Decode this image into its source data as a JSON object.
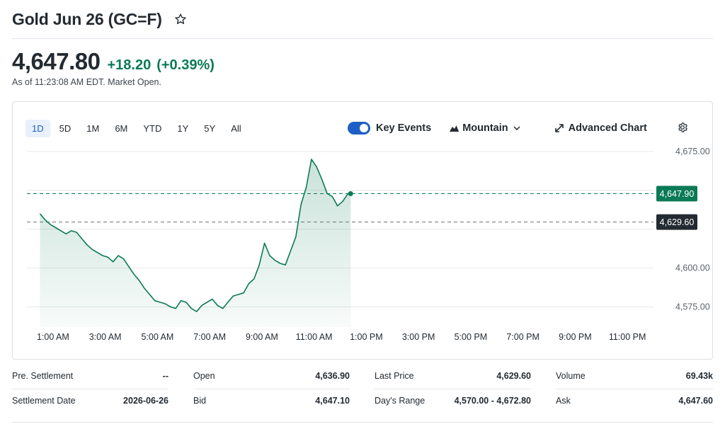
{
  "header": {
    "title": "Gold Jun 26 (GC=F)",
    "star_icon": "star-outline-icon"
  },
  "quote": {
    "price": "4,647.80",
    "change": "+18.20",
    "change_pct": "(+0.39%)",
    "as_of": "As of 11:23:08 AM EDT. Market Open.",
    "positive_color": "#0b7a56"
  },
  "ranges": [
    {
      "label": "1D",
      "active": true
    },
    {
      "label": "5D",
      "active": false
    },
    {
      "label": "1M",
      "active": false
    },
    {
      "label": "6M",
      "active": false
    },
    {
      "label": "YTD",
      "active": false
    },
    {
      "label": "1Y",
      "active": false
    },
    {
      "label": "5Y",
      "active": false
    },
    {
      "label": "All",
      "active": false
    }
  ],
  "toolbar": {
    "key_events_label": "Key Events",
    "key_events_on": true,
    "chart_type_label": "Mountain",
    "advanced_chart_label": "Advanced Chart",
    "settings_icon": "gear-icon"
  },
  "chart_data": {
    "type": "area",
    "x_ticks": [
      "1:00 AM",
      "3:00 AM",
      "5:00 AM",
      "7:00 AM",
      "9:00 AM",
      "11:00 AM",
      "1:00 PM",
      "3:00 PM",
      "5:00 PM",
      "7:00 PM",
      "9:00 PM",
      "11:00 PM"
    ],
    "y_ticks": [
      "4,675.00",
      "4,600.00",
      "4,575.00"
    ],
    "ylim": [
      4562,
      4675
    ],
    "last_price_label": "4,647.90",
    "prev_close_label": "4,629.60",
    "last_price_value": 4647.9,
    "prev_close_value": 4629.6,
    "line_color": "#0b7a56",
    "series": [
      {
        "x_hours": [
          0.5,
          0.7,
          0.9,
          1.1,
          1.3,
          1.5,
          1.7,
          1.9,
          2.1,
          2.3,
          2.5,
          2.7,
          2.9,
          3.1,
          3.3,
          3.5,
          3.7,
          3.9,
          4.1,
          4.3,
          4.5,
          4.7,
          4.9,
          5.1,
          5.3,
          5.5,
          5.7,
          5.9,
          6.1,
          6.3,
          6.5,
          6.7,
          6.9,
          7.1,
          7.3,
          7.5,
          7.7,
          7.9,
          8.1,
          8.3,
          8.5,
          8.7,
          8.9,
          9.1,
          9.3,
          9.5,
          9.7,
          9.9,
          10.1,
          10.3,
          10.5,
          10.7,
          10.9,
          11.1,
          11.3,
          11.5,
          11.7,
          11.9,
          12.1,
          12.3,
          12.4
        ],
        "values": [
          4635,
          4631,
          4628,
          4626,
          4624,
          4622,
          4624,
          4623,
          4619,
          4615,
          4612,
          4610,
          4608,
          4607,
          4604,
          4608,
          4606,
          4601,
          4596,
          4592,
          4587,
          4583,
          4579,
          4578,
          4577,
          4575,
          4574,
          4579,
          4578,
          4574,
          4572,
          4576,
          4578,
          4580,
          4576,
          4574,
          4578,
          4582,
          4583,
          4584,
          4590,
          4593,
          4602,
          4616,
          4608,
          4605,
          4603,
          4602,
          4611,
          4620,
          4641,
          4652,
          4670,
          4665,
          4657,
          4648,
          4646,
          4640,
          4643,
          4648,
          4647.9
        ]
      }
    ]
  },
  "stats": {
    "row1": [
      {
        "label": "Pre. Settlement",
        "value": "--"
      },
      {
        "label": "Open",
        "value": "4,636.90"
      },
      {
        "label": "Last Price",
        "value": "4,629.60"
      },
      {
        "label": "Volume",
        "value": "69.43k"
      }
    ],
    "row2": [
      {
        "label": "Settlement Date",
        "value": "2026-06-26"
      },
      {
        "label": "Bid",
        "value": "4,647.10"
      },
      {
        "label": "Day's Range",
        "value": "4,570.00 - 4,672.80"
      },
      {
        "label": "Ask",
        "value": "4,647.60"
      }
    ]
  }
}
